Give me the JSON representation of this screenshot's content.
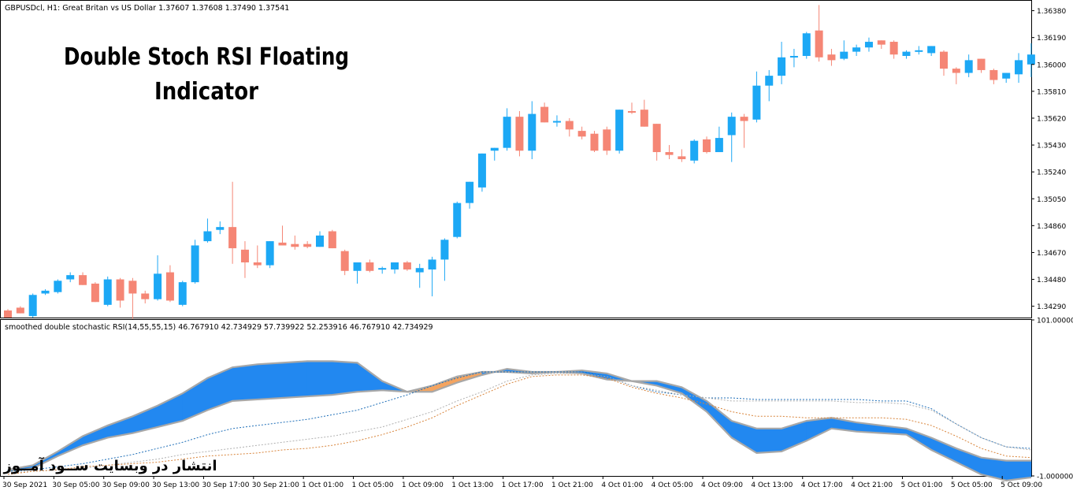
{
  "header": {
    "symbol_info": "GBPUSDcl, H1:  Great Britan vs US Dollar  1.37607 1.37608 1.37490 1.37541"
  },
  "overlay": {
    "title_line1": "Double Stoch RSI Floating",
    "title_line2": "Indicator",
    "watermark": "انتشار در وبسایت  ســود آمــوز"
  },
  "colors": {
    "bull": "#1CA8F5",
    "bear": "#F58675",
    "fill_up": "#2288F0",
    "fill_down": "#F4A460",
    "dot_upper": "#1F6FB8",
    "dot_lower": "#D8843A",
    "dot_grey": "#B0B0B0",
    "edge_grey": "#A8A8A8"
  },
  "chart_data": [
    {
      "type": "candlestick",
      "title": "GBPUSDcl, H1:  Great Britan vs US Dollar  1.37607 1.37608 1.37490 1.37541",
      "ylim": [
        1.3421,
        1.3645
      ],
      "y_ticks": [
        "1.36380",
        "1.36190",
        "1.36000",
        "1.35810",
        "1.35620",
        "1.35430",
        "1.35240",
        "1.35050",
        "1.34860",
        "1.34670",
        "1.34480",
        "1.34290"
      ],
      "x_ticks": [
        "30 Sep 2021",
        "30 Sep 05:00",
        "30 Sep 09:00",
        "30 Sep 13:00",
        "30 Sep 17:00",
        "30 Sep 21:00",
        "1 Oct 01:00",
        "1 Oct 05:00",
        "1 Oct 09:00",
        "1 Oct 13:00",
        "1 Oct 17:00",
        "1 Oct 21:00",
        "4 Oct 01:00",
        "4 Oct 05:00",
        "4 Oct 09:00",
        "4 Oct 13:00",
        "4 Oct 17:00",
        "4 Oct 21:00",
        "5 Oct 01:00",
        "5 Oct 05:00",
        "5 Oct 09:00"
      ],
      "candles": [
        {
          "o": 1.3426,
          "h": 1.3427,
          "l": 1.3421,
          "c": 1.3421
        },
        {
          "o": 1.3428,
          "h": 1.3429,
          "l": 1.3424,
          "c": 1.3424
        },
        {
          "o": 1.3422,
          "h": 1.3438,
          "l": 1.3421,
          "c": 1.3437
        },
        {
          "o": 1.3438,
          "h": 1.3441,
          "l": 1.3437,
          "c": 1.344
        },
        {
          "o": 1.3439,
          "h": 1.3448,
          "l": 1.3438,
          "c": 1.3447
        },
        {
          "o": 1.3448,
          "h": 1.3453,
          "l": 1.3446,
          "c": 1.3451
        },
        {
          "o": 1.3451,
          "h": 1.3453,
          "l": 1.3444,
          "c": 1.3444
        },
        {
          "o": 1.3445,
          "h": 1.3446,
          "l": 1.3432,
          "c": 1.3432
        },
        {
          "o": 1.343,
          "h": 1.345,
          "l": 1.3429,
          "c": 1.3448
        },
        {
          "o": 1.3448,
          "h": 1.3449,
          "l": 1.3428,
          "c": 1.3433
        },
        {
          "o": 1.3447,
          "h": 1.3449,
          "l": 1.342,
          "c": 1.3438
        },
        {
          "o": 1.3438,
          "h": 1.344,
          "l": 1.3431,
          "c": 1.3434
        },
        {
          "o": 1.3434,
          "h": 1.3465,
          "l": 1.3433,
          "c": 1.3452
        },
        {
          "o": 1.3453,
          "h": 1.3458,
          "l": 1.3432,
          "c": 1.3433
        },
        {
          "o": 1.343,
          "h": 1.3447,
          "l": 1.3429,
          "c": 1.3446
        },
        {
          "o": 1.3446,
          "h": 1.3476,
          "l": 1.3445,
          "c": 1.3472
        },
        {
          "o": 1.3475,
          "h": 1.3491,
          "l": 1.3474,
          "c": 1.3482
        },
        {
          "o": 1.3483,
          "h": 1.3489,
          "l": 1.348,
          "c": 1.3485
        },
        {
          "o": 1.3485,
          "h": 1.3517,
          "l": 1.3459,
          "c": 1.347
        },
        {
          "o": 1.3469,
          "h": 1.3475,
          "l": 1.3449,
          "c": 1.346
        },
        {
          "o": 1.346,
          "h": 1.3472,
          "l": 1.3456,
          "c": 1.3458
        },
        {
          "o": 1.3458,
          "h": 1.3475,
          "l": 1.3456,
          "c": 1.3475
        },
        {
          "o": 1.3474,
          "h": 1.3486,
          "l": 1.3472,
          "c": 1.3472
        },
        {
          "o": 1.3473,
          "h": 1.3479,
          "l": 1.3469,
          "c": 1.3471
        },
        {
          "o": 1.3473,
          "h": 1.3475,
          "l": 1.347,
          "c": 1.3471
        },
        {
          "o": 1.3471,
          "h": 1.3482,
          "l": 1.3471,
          "c": 1.3479
        },
        {
          "o": 1.3482,
          "h": 1.3483,
          "l": 1.347,
          "c": 1.347
        },
        {
          "o": 1.3468,
          "h": 1.3469,
          "l": 1.3451,
          "c": 1.3454
        },
        {
          "o": 1.3454,
          "h": 1.346,
          "l": 1.3445,
          "c": 1.346
        },
        {
          "o": 1.346,
          "h": 1.3462,
          "l": 1.3453,
          "c": 1.3454
        },
        {
          "o": 1.3455,
          "h": 1.3457,
          "l": 1.3452,
          "c": 1.3456
        },
        {
          "o": 1.3455,
          "h": 1.3459,
          "l": 1.3452,
          "c": 1.346
        },
        {
          "o": 1.346,
          "h": 1.3461,
          "l": 1.3454,
          "c": 1.3455
        },
        {
          "o": 1.3453,
          "h": 1.3459,
          "l": 1.3442,
          "c": 1.3456
        },
        {
          "o": 1.3455,
          "h": 1.3464,
          "l": 1.3436,
          "c": 1.3462
        },
        {
          "o": 1.3462,
          "h": 1.3477,
          "l": 1.3447,
          "c": 1.3476
        },
        {
          "o": 1.3478,
          "h": 1.3503,
          "l": 1.3477,
          "c": 1.3502
        },
        {
          "o": 1.3502,
          "h": 1.3517,
          "l": 1.3498,
          "c": 1.3517
        },
        {
          "o": 1.3513,
          "h": 1.3537,
          "l": 1.351,
          "c": 1.3537
        },
        {
          "o": 1.3539,
          "h": 1.3541,
          "l": 1.3532,
          "c": 1.3541
        },
        {
          "o": 1.3541,
          "h": 1.3569,
          "l": 1.3539,
          "c": 1.3563
        },
        {
          "o": 1.3563,
          "h": 1.3567,
          "l": 1.3535,
          "c": 1.3539
        },
        {
          "o": 1.3539,
          "h": 1.3574,
          "l": 1.3533,
          "c": 1.3565
        },
        {
          "o": 1.357,
          "h": 1.3573,
          "l": 1.3559,
          "c": 1.3559
        },
        {
          "o": 1.3559,
          "h": 1.3564,
          "l": 1.3556,
          "c": 1.356
        },
        {
          "o": 1.356,
          "h": 1.3562,
          "l": 1.3549,
          "c": 1.3554
        },
        {
          "o": 1.3553,
          "h": 1.3556,
          "l": 1.3547,
          "c": 1.3549
        },
        {
          "o": 1.3551,
          "h": 1.3553,
          "l": 1.3538,
          "c": 1.3539
        },
        {
          "o": 1.3554,
          "h": 1.3556,
          "l": 1.3536,
          "c": 1.3539
        },
        {
          "o": 1.3539,
          "h": 1.3568,
          "l": 1.3537,
          "c": 1.3568
        },
        {
          "o": 1.3567,
          "h": 1.3573,
          "l": 1.3565,
          "c": 1.3566
        },
        {
          "o": 1.3568,
          "h": 1.3575,
          "l": 1.3556,
          "c": 1.3556
        },
        {
          "o": 1.3558,
          "h": 1.3558,
          "l": 1.3532,
          "c": 1.3538
        },
        {
          "o": 1.3538,
          "h": 1.3543,
          "l": 1.3533,
          "c": 1.3536
        },
        {
          "o": 1.3535,
          "h": 1.354,
          "l": 1.3531,
          "c": 1.3533
        },
        {
          "o": 1.3532,
          "h": 1.3547,
          "l": 1.353,
          "c": 1.3546
        },
        {
          "o": 1.3547,
          "h": 1.3549,
          "l": 1.3537,
          "c": 1.3538
        },
        {
          "o": 1.3538,
          "h": 1.3556,
          "l": 1.3538,
          "c": 1.3548
        },
        {
          "o": 1.355,
          "h": 1.3566,
          "l": 1.3531,
          "c": 1.3563
        },
        {
          "o": 1.3563,
          "h": 1.3565,
          "l": 1.3541,
          "c": 1.356
        },
        {
          "o": 1.3561,
          "h": 1.3595,
          "l": 1.3559,
          "c": 1.3585
        },
        {
          "o": 1.3585,
          "h": 1.3596,
          "l": 1.3574,
          "c": 1.3592
        },
        {
          "o": 1.3592,
          "h": 1.3616,
          "l": 1.3586,
          "c": 1.3605
        },
        {
          "o": 1.3605,
          "h": 1.3611,
          "l": 1.3598,
          "c": 1.3606
        },
        {
          "o": 1.3606,
          "h": 1.3623,
          "l": 1.3604,
          "c": 1.3622
        },
        {
          "o": 1.3624,
          "h": 1.3642,
          "l": 1.3602,
          "c": 1.3605
        },
        {
          "o": 1.3607,
          "h": 1.3611,
          "l": 1.3599,
          "c": 1.3603
        },
        {
          "o": 1.3604,
          "h": 1.3617,
          "l": 1.3603,
          "c": 1.3609
        },
        {
          "o": 1.3609,
          "h": 1.3614,
          "l": 1.3606,
          "c": 1.3612
        },
        {
          "o": 1.3612,
          "h": 1.3619,
          "l": 1.3609,
          "c": 1.3616
        },
        {
          "o": 1.3617,
          "h": 1.3617,
          "l": 1.3611,
          "c": 1.3614
        },
        {
          "o": 1.3616,
          "h": 1.3617,
          "l": 1.3604,
          "c": 1.3607
        },
        {
          "o": 1.3606,
          "h": 1.361,
          "l": 1.3604,
          "c": 1.3609
        },
        {
          "o": 1.3609,
          "h": 1.3613,
          "l": 1.3607,
          "c": 1.361
        },
        {
          "o": 1.3608,
          "h": 1.3613,
          "l": 1.3606,
          "c": 1.3613
        },
        {
          "o": 1.3609,
          "h": 1.361,
          "l": 1.3592,
          "c": 1.3597
        },
        {
          "o": 1.3597,
          "h": 1.3598,
          "l": 1.3586,
          "c": 1.3594
        },
        {
          "o": 1.3594,
          "h": 1.3607,
          "l": 1.3591,
          "c": 1.3603
        },
        {
          "o": 1.3604,
          "h": 1.3604,
          "l": 1.3594,
          "c": 1.3596
        },
        {
          "o": 1.3596,
          "h": 1.3597,
          "l": 1.3586,
          "c": 1.3589
        },
        {
          "o": 1.359,
          "h": 1.3594,
          "l": 1.3587,
          "c": 1.3594
        },
        {
          "o": 1.3593,
          "h": 1.3608,
          "l": 1.3587,
          "c": 1.3603
        },
        {
          "o": 1.36,
          "h": 1.3615,
          "l": 1.3591,
          "c": 1.3607
        }
      ]
    },
    {
      "type": "area",
      "title": "smoothed double stochastic RSI(14,55,55,15) 46.767910 42.734929 57.739922 52.253916 46.767910 42.734929",
      "ylim": [
        -1.0,
        101.0
      ],
      "y_ticks": [
        "101.000000",
        "-1.000000"
      ],
      "x": [
        0,
        2,
        4,
        6,
        8,
        10,
        12,
        14,
        16,
        18,
        20,
        22,
        24,
        26,
        28,
        30,
        32,
        34,
        36,
        38,
        40,
        42,
        44,
        46,
        48,
        50,
        52,
        54,
        56,
        58,
        60,
        62,
        64,
        66,
        68,
        70,
        72,
        74,
        76,
        78,
        80,
        82
      ],
      "series": [
        {
          "values": [
            3,
            6,
            15,
            25,
            32,
            38,
            45,
            53,
            63,
            70,
            72,
            73,
            74,
            74,
            73,
            61,
            54,
            54,
            60,
            65,
            69,
            67,
            67,
            68,
            66,
            61,
            61,
            57,
            48,
            35,
            30,
            30,
            35,
            37,
            34,
            32,
            30,
            24,
            17,
            11,
            9,
            9
          ]
        },
        {
          "values": [
            2,
            4,
            12,
            19,
            24,
            27,
            31,
            35,
            42,
            48,
            49,
            50,
            51,
            52,
            54,
            55,
            54,
            58,
            64,
            67,
            67,
            66,
            67,
            66,
            62,
            61,
            58,
            53,
            41,
            24,
            14,
            15,
            22,
            30,
            28,
            27,
            26,
            16,
            8,
            0,
            -4,
            -2
          ]
        },
        {
          "values": [
            2,
            3,
            5,
            7,
            10,
            13,
            17,
            21,
            26,
            30,
            32,
            34,
            36,
            39,
            42,
            47,
            52,
            58,
            63,
            67,
            67,
            67,
            67,
            67,
            64,
            58,
            54,
            52,
            50,
            50,
            49,
            49,
            49,
            49,
            49,
            48,
            48,
            43,
            33,
            24,
            18,
            17
          ]
        },
        {
          "values": [
            1,
            2,
            3,
            4,
            6,
            8,
            10,
            13,
            15,
            17,
            19,
            21,
            23,
            25,
            28,
            31,
            36,
            41,
            48,
            54,
            61,
            65,
            66,
            66,
            64,
            58,
            55,
            52,
            50,
            48,
            48,
            48,
            48,
            48,
            47,
            47,
            46,
            42,
            33,
            24,
            18,
            16
          ]
        },
        {
          "values": [
            0,
            2,
            3,
            5,
            6,
            7,
            8,
            10,
            12,
            13,
            14,
            16,
            17,
            19,
            22,
            26,
            31,
            37,
            45,
            52,
            59,
            64,
            65,
            65,
            63,
            57,
            53,
            50,
            46,
            41,
            38,
            38,
            37,
            37,
            37,
            37,
            36,
            32,
            25,
            17,
            12,
            11
          ]
        }
      ]
    }
  ]
}
